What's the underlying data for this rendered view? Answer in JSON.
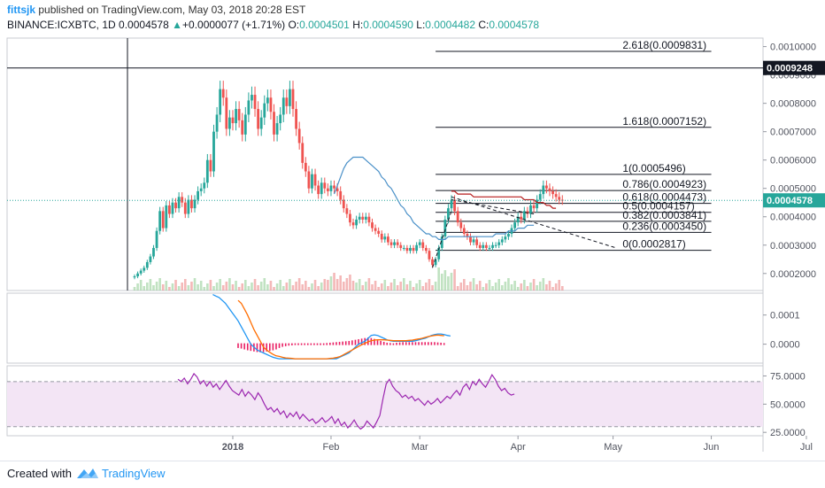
{
  "header": {
    "user": "fittsjk",
    "published_text": "published on TradingView.com, May 03, 2018 20:28 EST",
    "symbol": "BINANCE:ICXBTC, 1D",
    "last": "0.0004578",
    "arrow": "▲",
    "change": "+0.0000077 (+1.71%)",
    "o_label": "O:",
    "o": "0.0004501",
    "h_label": "H:",
    "h": "0.0004590",
    "l_label": "L:",
    "l": "0.0004482",
    "c_label": "C:",
    "c": "0.0004578"
  },
  "footer": {
    "created_with": "Created with",
    "brand": "TradingView"
  },
  "colors": {
    "up": "#26a69a",
    "down": "#ef5350",
    "ma_blue": "#4a90c8",
    "ma_red": "#b71c1c",
    "macd_blue": "#2196f3",
    "macd_orange": "#ff6d00",
    "hist": "#e91e63",
    "rsi_line": "#9c27b0",
    "rsi_band": "#f3e5f5",
    "last_price_bg": "#26a69a"
  },
  "chart_data": {
    "type": "candlestick",
    "x_start": "2017-12-01",
    "x_ticks": [
      "2018",
      "Feb",
      "Mar",
      "Apr",
      "May",
      "Jun",
      "Jul"
    ],
    "price_axis": {
      "ticks": [
        "0.0010000",
        "0.0009000",
        "0.0008000",
        "0.0007000",
        "0.0006000",
        "0.0005000",
        "0.0004000",
        "0.0003000",
        "0.0002000"
      ],
      "ylim": [
        0.00014,
        0.00103
      ],
      "marker_label": "0.0009248",
      "marker_value": 0.0009248,
      "last_label": "0.0004578",
      "last_value": 0.0004578
    },
    "fibonacci": [
      {
        "label": "2.618(0.0009831)",
        "value": 0.0009831
      },
      {
        "label": "1.618(0.0007152)",
        "value": 0.0007152
      },
      {
        "label": "1(0.0005496)",
        "value": 0.0005496
      },
      {
        "label": "0.786(0.0004923)",
        "value": 0.0004923
      },
      {
        "label": "0.618(0.0004473)",
        "value": 0.0004473
      },
      {
        "label": "0.5(0.0004157)",
        "value": 0.0004157
      },
      {
        "label": "0.382(0.0003841)",
        "value": 0.0003841
      },
      {
        "label": "0.236(0.0003450)",
        "value": 0.000345
      },
      {
        "label": "0(0.0002817)",
        "value": 0.0002817
      }
    ],
    "closes": [
      0.00019,
      0.0002,
      0.00021,
      0.00022,
      0.00024,
      0.00026,
      0.00029,
      0.00035,
      0.00042,
      0.00036,
      0.00044,
      0.00041,
      0.00045,
      0.00043,
      0.00047,
      0.00045,
      0.00041,
      0.00046,
      0.00043,
      0.00046,
      0.00049,
      0.0005,
      0.00052,
      0.0006,
      0.00056,
      0.0007,
      0.00076,
      0.00085,
      0.00082,
      0.00071,
      0.00075,
      0.00073,
      0.00078,
      0.00074,
      0.00069,
      0.00076,
      0.00081,
      0.00083,
      0.00078,
      0.00071,
      0.00075,
      0.0008,
      0.00082,
      0.00077,
      0.00069,
      0.00073,
      0.00076,
      0.00082,
      0.00079,
      0.00085,
      0.00078,
      0.00071,
      0.00066,
      0.00059,
      0.00056,
      0.0005,
      0.00055,
      0.00051,
      0.00048,
      0.00052,
      0.0005,
      0.00049,
      0.00051,
      0.0005,
      0.00049,
      0.00046,
      0.00043,
      0.00041,
      0.00038,
      0.00037,
      0.00039,
      0.0004,
      0.00039,
      0.0004,
      0.00038,
      0.00036,
      0.00035,
      0.00034,
      0.00032,
      0.00033,
      0.00031,
      0.0003,
      0.00031,
      0.0003,
      0.00029,
      0.00029,
      0.00028,
      0.00029,
      0.00028,
      0.0003,
      0.00031,
      0.00029,
      0.00028,
      0.00025,
      0.00023,
      0.00025,
      0.00029,
      0.00033,
      0.00039,
      0.00043,
      0.00046,
      0.00042,
      0.00038,
      0.00036,
      0.00034,
      0.00033,
      0.00031,
      0.00032,
      0.0003,
      0.00029,
      0.0003,
      0.00029,
      0.00029,
      0.0003,
      0.0003,
      0.00031,
      0.00032,
      0.00033,
      0.00034,
      0.00036,
      0.00038,
      0.0004,
      0.00039,
      0.00042,
      0.00041,
      0.00044,
      0.00043,
      0.00046,
      0.00048,
      0.00051,
      0.0005,
      0.00049,
      0.00048,
      0.00047,
      0.00046,
      0.000458
    ],
    "ma_blue": [
      null,
      null,
      null,
      null,
      null,
      null,
      null,
      null,
      null,
      null,
      null,
      null,
      null,
      null,
      null,
      null,
      null,
      null,
      null,
      null,
      null,
      null,
      null,
      null,
      null,
      null,
      null,
      null,
      null,
      null,
      null,
      null,
      null,
      null,
      null,
      null,
      null,
      null,
      null,
      null,
      null,
      null,
      null,
      null,
      null,
      null,
      null,
      null,
      null,
      null,
      null,
      null,
      null,
      null,
      null,
      null,
      null,
      null,
      null,
      null,
      null,
      null,
      null,
      0.00048,
      0.00051,
      0.00054,
      0.00057,
      0.00059,
      0.0006,
      0.00061,
      0.00061,
      0.00061,
      0.00061,
      0.0006,
      0.00059,
      0.00058,
      0.00057,
      0.00056,
      0.00054,
      0.00053,
      0.00051,
      0.0005,
      0.00048,
      0.00046,
      0.00044,
      0.00043,
      0.00041,
      0.0004,
      0.00038,
      0.00037,
      0.00036,
      0.00035,
      0.00034,
      0.00034,
      0.00033,
      0.00033,
      0.00032,
      0.00032,
      0.00032,
      0.00033,
      0.00033,
      0.00033,
      0.00033,
      0.00033,
      0.00033,
      0.00033,
      0.00033,
      0.00033,
      0.00033,
      0.00033,
      0.00033,
      0.00033,
      0.00033,
      0.00033,
      0.00034,
      0.00034,
      0.00034,
      0.00034,
      0.00035,
      0.00035,
      0.00035,
      0.00036,
      0.00036,
      0.00036,
      0.00037,
      0.00037,
      0.00037
    ],
    "ma_red": [
      null,
      null,
      null,
      null,
      null,
      null,
      null,
      null,
      null,
      null,
      null,
      null,
      null,
      null,
      null,
      null,
      null,
      null,
      null,
      null,
      null,
      null,
      null,
      null,
      null,
      null,
      null,
      null,
      null,
      null,
      null,
      null,
      null,
      null,
      null,
      null,
      null,
      null,
      null,
      null,
      null,
      null,
      null,
      null,
      null,
      null,
      null,
      null,
      null,
      null,
      null,
      null,
      null,
      null,
      null,
      null,
      null,
      null,
      null,
      null,
      null,
      null,
      null,
      null,
      null,
      null,
      null,
      null,
      null,
      null,
      null,
      null,
      null,
      null,
      null,
      null,
      null,
      null,
      null,
      null,
      null,
      null,
      null,
      null,
      null,
      null,
      null,
      null,
      null,
      null,
      null,
      null,
      null,
      null,
      null,
      null,
      null,
      null,
      null,
      null,
      0.00049,
      0.00049,
      0.00048,
      0.00048,
      0.00048,
      0.00048,
      0.00048,
      0.00047,
      0.00047,
      0.00047,
      0.00047,
      0.00047,
      0.00047,
      0.00047,
      0.00047,
      0.00047,
      0.00047,
      0.00047,
      0.00047,
      0.00047,
      0.00047,
      0.00047,
      0.00047,
      0.00046,
      0.00046,
      0.00046,
      0.00046,
      0.00045,
      0.00045,
      0.00045,
      0.00044,
      0.00044,
      0.00043,
      0.00043
    ],
    "trendlines": [
      {
        "from": [
          100,
          0.00047
        ],
        "to": [
          152,
          0.00029
        ],
        "style": "dashed"
      },
      {
        "from": [
          100,
          0.00046
        ],
        "to": [
          126,
          0.00041
        ],
        "style": "dashed"
      },
      {
        "from": [
          94,
          0.00022
        ],
        "to": [
          100,
          0.00042
        ],
        "style": "dashed"
      }
    ],
    "macd": {
      "ticks": [
        "0.0001",
        "0.0000"
      ],
      "ylim": [
        -6.5e-05,
        0.000175
      ],
      "macd": [
        null,
        null,
        null,
        null,
        null,
        null,
        null,
        null,
        null,
        null,
        null,
        null,
        null,
        null,
        null,
        null,
        null,
        null,
        null,
        null,
        null,
        null,
        null,
        null,
        null,
        0.00017,
        0.000165,
        0.00016,
        0.00015,
        0.00014,
        0.000125,
        0.00011,
        9.5e-05,
        8e-05,
        6e-05,
        4e-05,
        2e-05,
        0.0,
        -1e-05,
        -2e-05,
        -2.5e-05,
        -3e-05,
        -3.5e-05,
        -4e-05,
        -4.5e-05,
        -4.8e-05,
        -5e-05,
        -5e-05,
        -5e-05,
        -5e-05,
        -5e-05,
        -5e-05,
        -5e-05,
        -5e-05,
        -5e-05,
        -5e-05,
        -5e-05,
        -5e-05,
        -5e-05,
        -5e-05,
        -5e-05,
        -5e-05,
        -5e-05,
        -5e-05,
        -5e-05,
        -4.5e-05,
        -4e-05,
        -3.5e-05,
        -3e-05,
        -2e-05,
        -1e-05,
        0.0,
        5e-06,
        1e-05,
        2e-05,
        3e-05,
        3.2e-05,
        3e-05,
        2.5e-05,
        2e-05,
        1.5e-05,
        1.2e-05,
        1e-05,
        1e-05,
        1e-05,
        1e-05,
        1e-05,
        1e-05,
        1e-05,
        1.2e-05,
        1.5e-05,
        1.8e-05,
        2e-05,
        2.5e-05,
        3e-05,
        3.3e-05,
        3.5e-05,
        3.5e-05,
        3.3e-05,
        3e-05,
        2.8e-05
      ],
      "signal": [
        null,
        null,
        null,
        null,
        null,
        null,
        null,
        null,
        null,
        null,
        null,
        null,
        null,
        null,
        null,
        null,
        null,
        null,
        null,
        null,
        null,
        null,
        null,
        null,
        null,
        null,
        null,
        null,
        null,
        null,
        null,
        null,
        null,
        0.00015,
        0.00014,
        0.00012,
        0.0001,
        7.5e-05,
        5e-05,
        3e-05,
        1e-05,
        -1e-05,
        -2e-05,
        -2.8e-05,
        -3.5e-05,
        -4e-05,
        -4.2e-05,
        -4.5e-05,
        -4.7e-05,
        -4.8e-05,
        -4.9e-05,
        -5e-05,
        -5e-05,
        -5e-05,
        -5e-05,
        -5e-05,
        -5e-05,
        -5e-05,
        -5e-05,
        -5e-05,
        -5e-05,
        -5e-05,
        -4.9e-05,
        -4.8e-05,
        -4.6e-05,
        -4.3e-05,
        -3.8e-05,
        -3.2e-05,
        -2.6e-05,
        -2e-05,
        -1.4e-05,
        -8e-06,
        -2e-06,
        3e-06,
        8e-06,
        1.2e-05,
        1.4e-05,
        1.5e-05,
        1.5e-05,
        1.5e-05,
        1.4e-05,
        1.3e-05,
        1.2e-05,
        1.2e-05,
        1.2e-05,
        1.2e-05,
        1.2e-05,
        1.3e-05,
        1.4e-05,
        1.6e-05,
        1.8e-05,
        2e-05,
        2.3e-05,
        2.6e-05,
        2.8e-05,
        3e-05,
        3.1e-05,
        3e-05,
        2.9e-05
      ],
      "hist": [
        null,
        null,
        null,
        null,
        null,
        null,
        null,
        null,
        null,
        null,
        null,
        null,
        null,
        null,
        null,
        null,
        null,
        null,
        null,
        null,
        null,
        null,
        null,
        null,
        null,
        null,
        null,
        null,
        null,
        null,
        null,
        null,
        null,
        -1e-05,
        -1.2e-05,
        -1.5e-05,
        -1.8e-05,
        -2e-05,
        -2.2e-05,
        -2.4e-05,
        -2.5e-05,
        -2.4e-05,
        -2.2e-05,
        -2e-05,
        -1.8e-05,
        -1.5e-05,
        -1e-05,
        -6e-06,
        -4e-06,
        -2e-06,
        -1e-06,
        0.0,
        0.0,
        0.0,
        0.0,
        0.0,
        0.0,
        0.0,
        0.0,
        0.0,
        0.0,
        1e-06,
        2e-06,
        3e-06,
        4e-06,
        5e-06,
        6e-06,
        7e-06,
        8e-06,
        1e-05,
        1.2e-05,
        1.4e-05,
        1.6e-05,
        1.8e-05,
        2e-05,
        1.8e-05,
        1.5e-05,
        1e-05,
        8e-06,
        5e-06,
        2e-06,
        1e-06,
        0.0,
        2e-06,
        3e-06,
        4e-06,
        4e-06,
        4e-06,
        4e-06,
        4e-06,
        4e-06,
        4e-06,
        4e-06,
        4e-06,
        4e-06,
        4e-06,
        3e-06,
        2e-06,
        1e-06
      ]
    },
    "rsi": {
      "ticks": [
        "75.0000",
        "50.0000",
        "25.0000"
      ],
      "ylim": [
        22,
        84
      ],
      "upper": 70,
      "lower": 30,
      "values": [
        null,
        null,
        null,
        null,
        null,
        null,
        null,
        null,
        null,
        null,
        null,
        null,
        null,
        null,
        null,
        null,
        null,
        null,
        null,
        null,
        null,
        null,
        null,
        null,
        null,
        72,
        70,
        73,
        68,
        72,
        77,
        74,
        68,
        71,
        66,
        70,
        65,
        68,
        63,
        67,
        71,
        66,
        62,
        60,
        58,
        63,
        57,
        61,
        58,
        54,
        60,
        56,
        50,
        45,
        47,
        43,
        46,
        41,
        44,
        38,
        42,
        39,
        43,
        37,
        41,
        38,
        35,
        37,
        33,
        35,
        38,
        34,
        36,
        39,
        33,
        37,
        31,
        34,
        29,
        32,
        36,
        31,
        28,
        30,
        35,
        32,
        29,
        34,
        40,
        55,
        68,
        72,
        66,
        62,
        60,
        56,
        58,
        55,
        57,
        53,
        55,
        52,
        49,
        53,
        50,
        52,
        55,
        51,
        54,
        57,
        55,
        59,
        62,
        58,
        65,
        68,
        63,
        70,
        67,
        72,
        68,
        65,
        70,
        76,
        72,
        66,
        62,
        64,
        60,
        58,
        59
      ],
      "x_offset": 0
    }
  }
}
